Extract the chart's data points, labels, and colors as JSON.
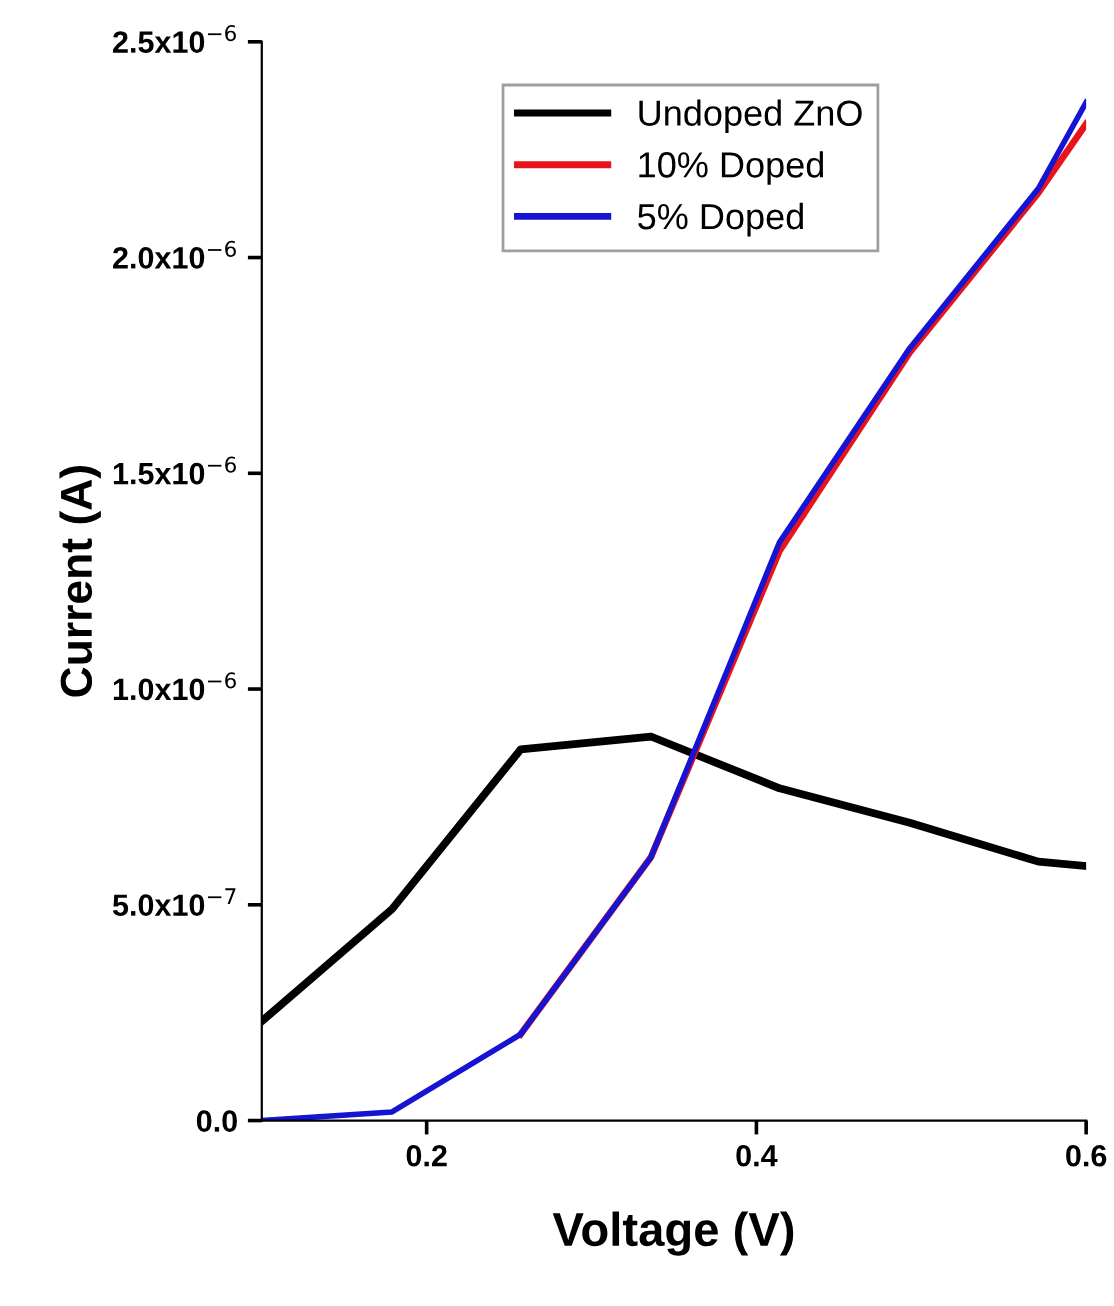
{
  "chart_data": {
    "type": "line",
    "xlabel": "Voltage (V)",
    "ylabel": "Current (A)",
    "xlim": [
      0.1,
      0.6
    ],
    "xticks": [
      0.2,
      0.4,
      0.6
    ],
    "ylim": [
      0,
      2.5e-06
    ],
    "yticks": [
      {
        "value": 0,
        "label": "0.0"
      },
      {
        "value": 5e-07,
        "label": "5.0x10$^{−7}$"
      },
      {
        "value": 1e-06,
        "label": "1.0x10$^{−6}$"
      },
      {
        "value": 1.5e-06,
        "label": "1.5x10$^{−6}$"
      },
      {
        "value": 2e-06,
        "label": "2.0x10$^{−6}$"
      },
      {
        "value": 2.5e-06,
        "label": "2.5x10$^{−6}$"
      }
    ],
    "x": [
      0.1,
      0.179,
      0.257,
      0.336,
      0.414,
      0.493,
      0.571,
      0.6
    ],
    "series": [
      {
        "name": "Undoped ZnO",
        "color": "#000000",
        "values": [
          2.3e-07,
          4.9e-07,
          8.6e-07,
          8.9e-07,
          7.7e-07,
          6.9e-07,
          6e-07,
          5.9e-07
        ]
      },
      {
        "name": "10% Doped",
        "color": "#e8141c",
        "values": [
          null,
          null,
          2e-07,
          6.1e-07,
          1.32e-06,
          1.78e-06,
          2.15e-06,
          2.31e-06
        ]
      },
      {
        "name": "5% Doped",
        "color": "#1414d2",
        "values": [
          0,
          2e-08,
          2e-07,
          6.1e-07,
          1.34e-06,
          1.79e-06,
          2.16e-06,
          2.36e-06
        ]
      }
    ],
    "legend": "top",
    "grid": false,
    "marker": "none",
    "line_style": "solid"
  }
}
